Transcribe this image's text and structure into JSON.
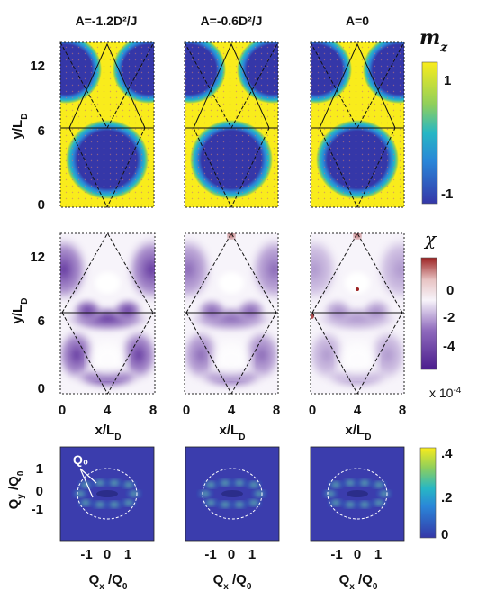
{
  "column_titles": [
    "A=-1.2D²/J",
    "A=-0.6D²/J",
    "A=0"
  ],
  "rows": {
    "mz": {
      "colorbar_label": "m_z",
      "colorbar_ticks": [
        "1",
        "-1"
      ],
      "y_ticks": [
        "12",
        "6",
        "0"
      ],
      "y_label": "y/L_D",
      "colors": {
        "high": "#f9ec1c",
        "low": "#3537a8",
        "edge": "#27b7c4"
      }
    },
    "chi": {
      "colorbar_label": "χ",
      "colorbar_ticks": [
        "0",
        "-2",
        "-4"
      ],
      "colorbar_scale": "x 10⁻⁴",
      "y_ticks": [
        "12",
        "6",
        "0"
      ],
      "y_label": "y/L_D",
      "x_ticks": [
        "0",
        "4",
        "8"
      ],
      "x_label": "x/L_D",
      "colors": {
        "zero": "#f7f4fa",
        "neg": "#4b1d8d",
        "pos": "#9c2222"
      }
    },
    "sq": {
      "colorbar_ticks": [
        ".4",
        ".2",
        "0"
      ],
      "y_ticks": [
        "1",
        "0",
        "-1"
      ],
      "y_label": "Q_y /Q_0",
      "x_ticks": [
        "-1",
        "0",
        "1"
      ],
      "x_label": "Q_x /Q_0",
      "annotation": "Q₀",
      "colors": {
        "bg": "#3b3dad"
      }
    }
  }
}
